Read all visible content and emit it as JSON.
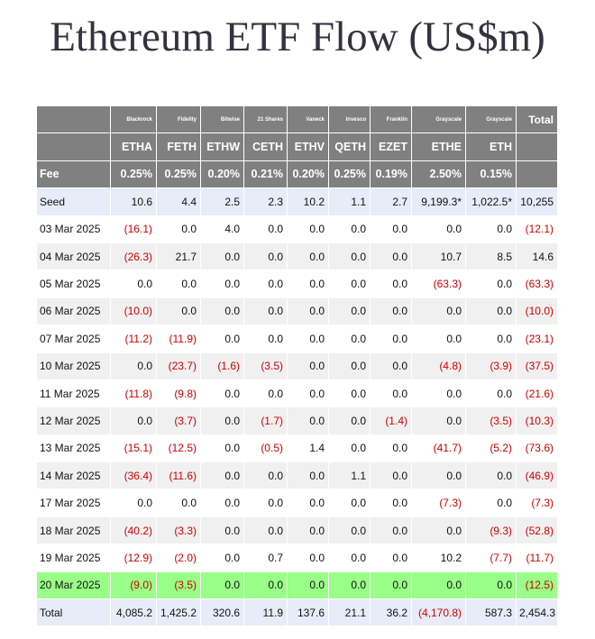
{
  "title": "Ethereum ETF Flow (US$m)",
  "table": {
    "issuers": [
      "Blackrock",
      "Fidelity",
      "Bitwise",
      "21 Shares",
      "Vaneck",
      "Invesco",
      "Franklin",
      "Grayscale",
      "Grayscale"
    ],
    "total_header": "Total",
    "tickers": [
      "ETHA",
      "FETH",
      "ETHW",
      "CETH",
      "ETHV",
      "QETH",
      "EZET",
      "ETHE",
      "ETH"
    ],
    "fee_label": "Fee",
    "fees": [
      "0.25%",
      "0.25%",
      "0.20%",
      "0.21%",
      "0.20%",
      "0.25%",
      "0.19%",
      "2.50%",
      "0.15%"
    ],
    "rows": [
      [
        "Seed",
        "10.6",
        "4.4",
        "2.5",
        "2.3",
        "10.2",
        "1.1",
        "2.7",
        "9,199.3*",
        "1,022.5*",
        "10,255"
      ],
      [
        "03 Mar 2025",
        "(16.1)",
        "0.0",
        "4.0",
        "0.0",
        "0.0",
        "0.0",
        "0.0",
        "0.0",
        "0.0",
        "(12.1)"
      ],
      [
        "04 Mar 2025",
        "(26.3)",
        "21.7",
        "0.0",
        "0.0",
        "0.0",
        "0.0",
        "0.0",
        "10.7",
        "8.5",
        "14.6"
      ],
      [
        "05 Mar 2025",
        "0.0",
        "0.0",
        "0.0",
        "0.0",
        "0.0",
        "0.0",
        "0.0",
        "(63.3)",
        "0.0",
        "(63.3)"
      ],
      [
        "06 Mar 2025",
        "(10.0)",
        "0.0",
        "0.0",
        "0.0",
        "0.0",
        "0.0",
        "0.0",
        "0.0",
        "0.0",
        "(10.0)"
      ],
      [
        "07 Mar 2025",
        "(11.2)",
        "(11.9)",
        "0.0",
        "0.0",
        "0.0",
        "0.0",
        "0.0",
        "0.0",
        "0.0",
        "(23.1)"
      ],
      [
        "10 Mar 2025",
        "0.0",
        "(23.7)",
        "(1.6)",
        "(3.5)",
        "0.0",
        "0.0",
        "0.0",
        "(4.8)",
        "(3.9)",
        "(37.5)"
      ],
      [
        "11 Mar 2025",
        "(11.8)",
        "(9.8)",
        "0.0",
        "0.0",
        "0.0",
        "0.0",
        "0.0",
        "0.0",
        "0.0",
        "(21.6)"
      ],
      [
        "12 Mar 2025",
        "0.0",
        "(3.7)",
        "0.0",
        "(1.7)",
        "0.0",
        "0.0",
        "(1.4)",
        "0.0",
        "(3.5)",
        "(10.3)"
      ],
      [
        "13 Mar 2025",
        "(15.1)",
        "(12.5)",
        "0.0",
        "(0.5)",
        "1.4",
        "0.0",
        "0.0",
        "(41.7)",
        "(5.2)",
        "(73.6)"
      ],
      [
        "14 Mar 2025",
        "(36.4)",
        "(11.6)",
        "0.0",
        "0.0",
        "0.0",
        "1.1",
        "0.0",
        "0.0",
        "0.0",
        "(46.9)"
      ],
      [
        "17 Mar 2025",
        "0.0",
        "0.0",
        "0.0",
        "0.0",
        "0.0",
        "0.0",
        "0.0",
        "(7.3)",
        "0.0",
        "(7.3)"
      ],
      [
        "18 Mar 2025",
        "(40.2)",
        "(3.3)",
        "0.0",
        "0.0",
        "0.0",
        "0.0",
        "0.0",
        "0.0",
        "(9.3)",
        "(52.8)"
      ],
      [
        "19 Mar 2025",
        "(12.9)",
        "(2.0)",
        "0.0",
        "0.7",
        "0.0",
        "0.0",
        "0.0",
        "10.2",
        "(7.7)",
        "(11.7)"
      ],
      [
        "20 Mar 2025",
        "(9.0)",
        "(3.5)",
        "0.0",
        "0.0",
        "0.0",
        "0.0",
        "0.0",
        "0.0",
        "0.0",
        "(12.5)"
      ],
      [
        "Total",
        "4,085.2",
        "1,425.2",
        "320.6",
        "11.9",
        "137.6",
        "21.1",
        "36.2",
        "(4,170.8)",
        "587.3",
        "2,454.3"
      ]
    ],
    "highlight": {
      "row": 14,
      "color": "#99ff88"
    },
    "negative_color": "#cc0000"
  }
}
